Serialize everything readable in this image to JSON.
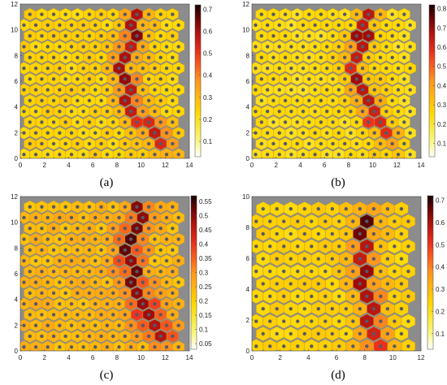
{
  "chart_data": [
    {
      "type": "heatmap",
      "panel_label": "(a)",
      "caption_display": "(a)",
      "xlim": [
        0,
        14
      ],
      "ylim": [
        0,
        12
      ],
      "xticks": [
        "0",
        "2",
        "4",
        "6",
        "8",
        "10",
        "12",
        "14"
      ],
      "yticks": [
        "0",
        "2",
        "4",
        "6",
        "8",
        "10",
        "12"
      ],
      "grid_cols": 14,
      "grid_rows": 14,
      "colorbar": {
        "min": 0.03,
        "max": 0.72,
        "ticks": [
          "0.1",
          "0.2",
          "0.3",
          "0.4",
          "0.5",
          "0.6",
          "0.7"
        ],
        "tick_values": [
          0.1,
          0.2,
          0.3,
          0.4,
          0.5,
          0.6,
          0.7
        ]
      },
      "path": [
        [
          9.8,
          11.9
        ],
        [
          9.6,
          11
        ],
        [
          9.4,
          10
        ],
        [
          9.2,
          9
        ],
        [
          8.8,
          8
        ],
        [
          8.6,
          7
        ],
        [
          8.6,
          6
        ],
        [
          8.8,
          5
        ],
        [
          9.2,
          4
        ],
        [
          9.8,
          3.2
        ],
        [
          10.6,
          2.4
        ],
        [
          11.4,
          1.8
        ],
        [
          12,
          1.3
        ]
      ],
      "peak": 0.72
    },
    {
      "type": "heatmap",
      "panel_label": "(b)",
      "caption_display": "(b)",
      "xlim": [
        0,
        14
      ],
      "ylim": [
        0,
        12
      ],
      "xticks": [
        "0",
        "2",
        "4",
        "6",
        "8",
        "10",
        "12",
        "14"
      ],
      "yticks": [
        "0",
        "2",
        "4",
        "6",
        "8",
        "10",
        "12"
      ],
      "grid_cols": 14,
      "grid_rows": 14,
      "colorbar": {
        "min": 0.03,
        "max": 0.82,
        "ticks": [
          "0.1",
          "0.2",
          "0.3",
          "0.4",
          "0.5",
          "0.6",
          "0.7",
          "0.8"
        ],
        "tick_values": [
          0.1,
          0.2,
          0.3,
          0.4,
          0.5,
          0.6,
          0.7,
          0.8
        ]
      },
      "path": [
        [
          9.8,
          11.9
        ],
        [
          9.7,
          11
        ],
        [
          9.4,
          10
        ],
        [
          8.9,
          9
        ],
        [
          8.3,
          8
        ],
        [
          8.5,
          7
        ],
        [
          9,
          6
        ],
        [
          9.4,
          5
        ],
        [
          9.7,
          4
        ],
        [
          10,
          3
        ],
        [
          10.6,
          2.2
        ],
        [
          11.2,
          1.6
        ]
      ],
      "peak": 0.82
    },
    {
      "type": "heatmap",
      "panel_label": "(c)",
      "caption_display": "(c)",
      "xlim": [
        0,
        14
      ],
      "ylim": [
        0,
        12
      ],
      "xticks": [
        "0",
        "2",
        "4",
        "6",
        "8",
        "10",
        "12",
        "14"
      ],
      "yticks": [
        "0",
        "2",
        "4",
        "6",
        "8",
        "10",
        "12"
      ],
      "grid_cols": 14,
      "grid_rows": 14,
      "colorbar": {
        "min": 0.03,
        "max": 0.57,
        "ticks": [
          "0.05",
          "0.1",
          "0.15",
          "0.2",
          "0.25",
          "0.3",
          "0.35",
          "0.4",
          "0.45",
          "0.5",
          "0.55"
        ],
        "tick_values": [
          0.05,
          0.1,
          0.15,
          0.2,
          0.25,
          0.3,
          0.35,
          0.4,
          0.45,
          0.5,
          0.55
        ]
      },
      "path": [
        [
          10,
          11.9
        ],
        [
          9.9,
          11
        ],
        [
          9.6,
          10
        ],
        [
          9.2,
          9
        ],
        [
          8.8,
          8
        ],
        [
          9,
          7
        ],
        [
          9.4,
          6
        ],
        [
          9.7,
          5
        ],
        [
          10,
          4
        ],
        [
          10.4,
          3
        ],
        [
          11,
          2.2
        ],
        [
          11.6,
          1.5
        ]
      ],
      "peak": 0.57
    },
    {
      "type": "heatmap",
      "panel_label": "(d)",
      "caption_display": "(d)",
      "xlim": [
        0,
        12
      ],
      "ylim": [
        0,
        10
      ],
      "xticks": [
        "0",
        "2",
        "4",
        "6",
        "8",
        "10",
        "12"
      ],
      "yticks": [
        "0",
        "2",
        "4",
        "6",
        "8",
        "10"
      ],
      "grid_cols": 12,
      "grid_rows": 12,
      "colorbar": {
        "min": 0.03,
        "max": 0.72,
        "ticks": [
          "0.1",
          "0.2",
          "0.3",
          "0.4",
          "0.5",
          "0.6",
          "0.7"
        ],
        "tick_values": [
          0.1,
          0.2,
          0.3,
          0.4,
          0.5,
          0.6,
          0.7
        ]
      },
      "path": [
        [
          8.1,
          10
        ],
        [
          8.2,
          9
        ],
        [
          8.1,
          8
        ],
        [
          8,
          7
        ],
        [
          7.9,
          6
        ],
        [
          8,
          5
        ],
        [
          8.1,
          4
        ],
        [
          8.2,
          3
        ],
        [
          8.4,
          2
        ],
        [
          8.6,
          1
        ],
        [
          8.7,
          0.3
        ]
      ],
      "peak": 0.72
    }
  ]
}
